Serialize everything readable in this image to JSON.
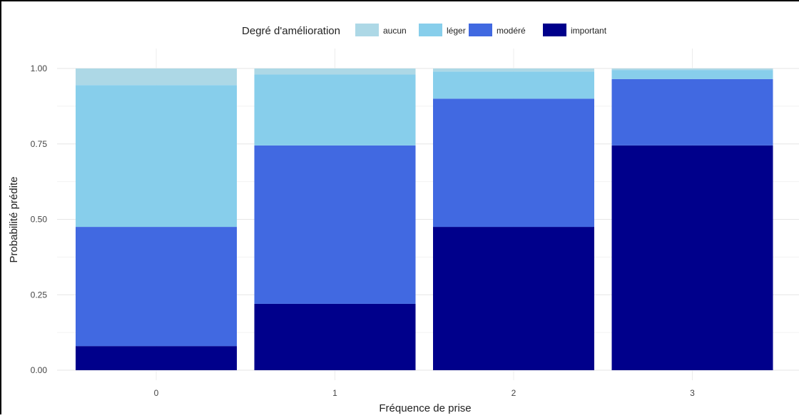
{
  "chart_data": {
    "type": "bar",
    "stacked": true,
    "normalized": true,
    "xlabel": "Fréquence de prise",
    "ylabel": "Probabilité prédite",
    "ylim": [
      0,
      1
    ],
    "yticks": [
      0,
      0.25,
      0.5,
      0.75,
      1
    ],
    "ytick_labels": [
      "0.00",
      "0.25",
      "0.50",
      "0.75",
      "1.00"
    ],
    "categories": [
      "0",
      "1",
      "2",
      "3"
    ],
    "legend": {
      "title": "Degré d'amélioration",
      "position": "top"
    },
    "series": [
      {
        "name": "important",
        "color": "#00008b",
        "values": [
          0.08,
          0.22,
          0.475,
          0.745
        ]
      },
      {
        "name": "modéré",
        "color": "#4169e1",
        "values": [
          0.395,
          0.525,
          0.425,
          0.22
        ]
      },
      {
        "name": "léger",
        "color": "#87ceeb",
        "values": [
          0.47,
          0.235,
          0.09,
          0.03
        ]
      },
      {
        "name": "aucun",
        "color": "#add8e6",
        "values": [
          0.055,
          0.02,
          0.01,
          0.005
        ]
      }
    ],
    "legend_order": [
      "aucun",
      "léger",
      "modéré",
      "important"
    ],
    "grid": true
  }
}
